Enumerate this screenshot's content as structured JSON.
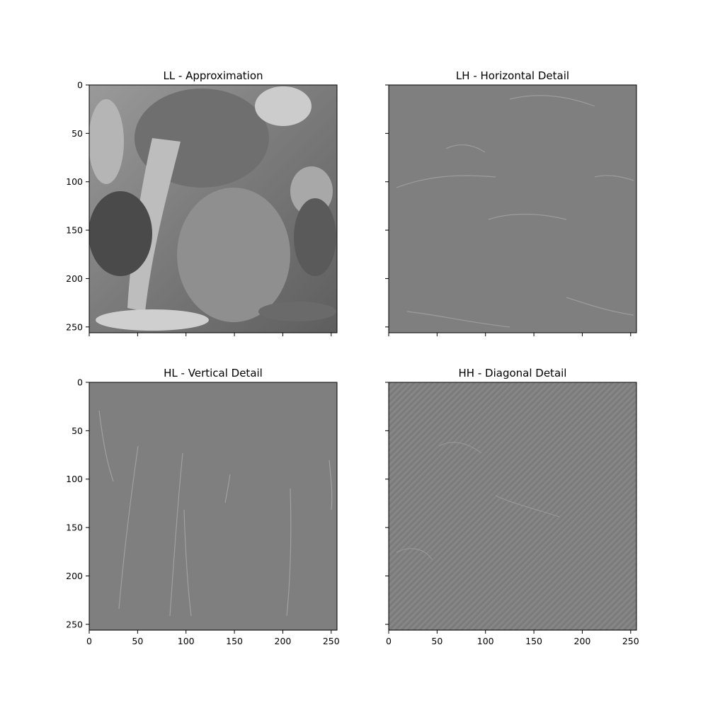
{
  "figure": {
    "background": "#ffffff"
  },
  "chart_data": [
    {
      "type": "heatmap",
      "title": "LL - Approximation",
      "colormap": "gray",
      "image_shape": [
        256,
        256
      ],
      "xlim": [
        0,
        256
      ],
      "ylim": [
        256,
        0
      ],
      "yticks": [
        0,
        50,
        100,
        150,
        200,
        250
      ],
      "xticks": [
        0,
        50,
        100,
        150,
        200,
        250
      ],
      "yticklabels": [
        "0",
        "50",
        "100",
        "150",
        "200",
        "250"
      ],
      "xticklabels": [],
      "fill_color": "#8a8a8a"
    },
    {
      "type": "heatmap",
      "title": "LH - Horizontal Detail",
      "colormap": "gray",
      "image_shape": [
        256,
        256
      ],
      "xlim": [
        0,
        256
      ],
      "ylim": [
        256,
        0
      ],
      "yticks": [
        0,
        50,
        100,
        150,
        200,
        250
      ],
      "xticks": [
        0,
        50,
        100,
        150,
        200,
        250
      ],
      "yticklabels": [],
      "xticklabels": [],
      "fill_color": "#7f7f7f"
    },
    {
      "type": "heatmap",
      "title": "HL - Vertical Detail",
      "colormap": "gray",
      "image_shape": [
        256,
        256
      ],
      "xlim": [
        0,
        256
      ],
      "ylim": [
        256,
        0
      ],
      "yticks": [
        0,
        50,
        100,
        150,
        200,
        250
      ],
      "xticks": [
        0,
        50,
        100,
        150,
        200,
        250
      ],
      "yticklabels": [
        "0",
        "50",
        "100",
        "150",
        "200",
        "250"
      ],
      "xticklabels": [
        "0",
        "50",
        "100",
        "150",
        "200",
        "250"
      ],
      "fill_color": "#7f7f7f"
    },
    {
      "type": "heatmap",
      "title": "HH - Diagonal Detail",
      "colormap": "gray",
      "image_shape": [
        256,
        256
      ],
      "xlim": [
        0,
        256
      ],
      "ylim": [
        256,
        0
      ],
      "yticks": [
        0,
        50,
        100,
        150,
        200,
        250
      ],
      "xticks": [
        0,
        50,
        100,
        150,
        200,
        250
      ],
      "yticklabels": [],
      "xticklabels": [
        "0",
        "50",
        "100",
        "150",
        "200",
        "250"
      ],
      "fill_color": "#7f7f7f"
    }
  ]
}
